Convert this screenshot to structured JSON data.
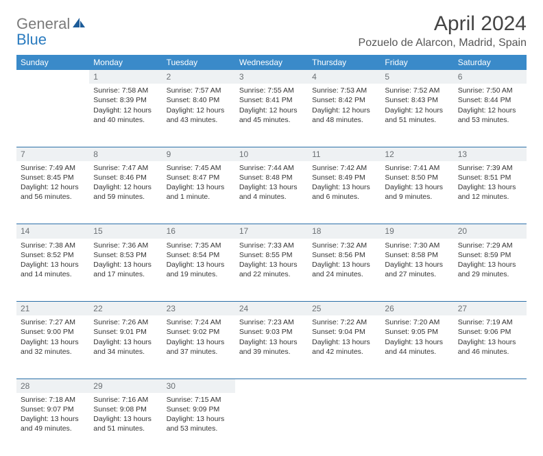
{
  "brand": {
    "word1": "General",
    "word2": "Blue",
    "color_general": "#7a7a7a",
    "color_blue": "#2a7bbf",
    "icon_color": "#1d5c99"
  },
  "title": "April 2024",
  "location": "Pozuelo de Alarcon, Madrid, Spain",
  "colors": {
    "header_bg": "#3a8ac9",
    "header_text": "#ffffff",
    "daynum_bg": "#eef1f3",
    "daynum_text": "#6a6f73",
    "row_border": "#2a6fa8",
    "body_text": "#333333",
    "page_bg": "#ffffff"
  },
  "weekdays": [
    "Sunday",
    "Monday",
    "Tuesday",
    "Wednesday",
    "Thursday",
    "Friday",
    "Saturday"
  ],
  "weeks": [
    {
      "nums": [
        "",
        "1",
        "2",
        "3",
        "4",
        "5",
        "6"
      ],
      "cells": [
        null,
        {
          "sunrise": "7:58 AM",
          "sunset": "8:39 PM",
          "daylight": "12 hours and 40 minutes."
        },
        {
          "sunrise": "7:57 AM",
          "sunset": "8:40 PM",
          "daylight": "12 hours and 43 minutes."
        },
        {
          "sunrise": "7:55 AM",
          "sunset": "8:41 PM",
          "daylight": "12 hours and 45 minutes."
        },
        {
          "sunrise": "7:53 AM",
          "sunset": "8:42 PM",
          "daylight": "12 hours and 48 minutes."
        },
        {
          "sunrise": "7:52 AM",
          "sunset": "8:43 PM",
          "daylight": "12 hours and 51 minutes."
        },
        {
          "sunrise": "7:50 AM",
          "sunset": "8:44 PM",
          "daylight": "12 hours and 53 minutes."
        }
      ]
    },
    {
      "nums": [
        "7",
        "8",
        "9",
        "10",
        "11",
        "12",
        "13"
      ],
      "cells": [
        {
          "sunrise": "7:49 AM",
          "sunset": "8:45 PM",
          "daylight": "12 hours and 56 minutes."
        },
        {
          "sunrise": "7:47 AM",
          "sunset": "8:46 PM",
          "daylight": "12 hours and 59 minutes."
        },
        {
          "sunrise": "7:45 AM",
          "sunset": "8:47 PM",
          "daylight": "13 hours and 1 minute."
        },
        {
          "sunrise": "7:44 AM",
          "sunset": "8:48 PM",
          "daylight": "13 hours and 4 minutes."
        },
        {
          "sunrise": "7:42 AM",
          "sunset": "8:49 PM",
          "daylight": "13 hours and 6 minutes."
        },
        {
          "sunrise": "7:41 AM",
          "sunset": "8:50 PM",
          "daylight": "13 hours and 9 minutes."
        },
        {
          "sunrise": "7:39 AM",
          "sunset": "8:51 PM",
          "daylight": "13 hours and 12 minutes."
        }
      ]
    },
    {
      "nums": [
        "14",
        "15",
        "16",
        "17",
        "18",
        "19",
        "20"
      ],
      "cells": [
        {
          "sunrise": "7:38 AM",
          "sunset": "8:52 PM",
          "daylight": "13 hours and 14 minutes."
        },
        {
          "sunrise": "7:36 AM",
          "sunset": "8:53 PM",
          "daylight": "13 hours and 17 minutes."
        },
        {
          "sunrise": "7:35 AM",
          "sunset": "8:54 PM",
          "daylight": "13 hours and 19 minutes."
        },
        {
          "sunrise": "7:33 AM",
          "sunset": "8:55 PM",
          "daylight": "13 hours and 22 minutes."
        },
        {
          "sunrise": "7:32 AM",
          "sunset": "8:56 PM",
          "daylight": "13 hours and 24 minutes."
        },
        {
          "sunrise": "7:30 AM",
          "sunset": "8:58 PM",
          "daylight": "13 hours and 27 minutes."
        },
        {
          "sunrise": "7:29 AM",
          "sunset": "8:59 PM",
          "daylight": "13 hours and 29 minutes."
        }
      ]
    },
    {
      "nums": [
        "21",
        "22",
        "23",
        "24",
        "25",
        "26",
        "27"
      ],
      "cells": [
        {
          "sunrise": "7:27 AM",
          "sunset": "9:00 PM",
          "daylight": "13 hours and 32 minutes."
        },
        {
          "sunrise": "7:26 AM",
          "sunset": "9:01 PM",
          "daylight": "13 hours and 34 minutes."
        },
        {
          "sunrise": "7:24 AM",
          "sunset": "9:02 PM",
          "daylight": "13 hours and 37 minutes."
        },
        {
          "sunrise": "7:23 AM",
          "sunset": "9:03 PM",
          "daylight": "13 hours and 39 minutes."
        },
        {
          "sunrise": "7:22 AM",
          "sunset": "9:04 PM",
          "daylight": "13 hours and 42 minutes."
        },
        {
          "sunrise": "7:20 AM",
          "sunset": "9:05 PM",
          "daylight": "13 hours and 44 minutes."
        },
        {
          "sunrise": "7:19 AM",
          "sunset": "9:06 PM",
          "daylight": "13 hours and 46 minutes."
        }
      ]
    },
    {
      "nums": [
        "28",
        "29",
        "30",
        "",
        "",
        "",
        ""
      ],
      "cells": [
        {
          "sunrise": "7:18 AM",
          "sunset": "9:07 PM",
          "daylight": "13 hours and 49 minutes."
        },
        {
          "sunrise": "7:16 AM",
          "sunset": "9:08 PM",
          "daylight": "13 hours and 51 minutes."
        },
        {
          "sunrise": "7:15 AM",
          "sunset": "9:09 PM",
          "daylight": "13 hours and 53 minutes."
        },
        null,
        null,
        null,
        null
      ]
    }
  ],
  "labels": {
    "sunrise_prefix": "Sunrise: ",
    "sunset_prefix": "Sunset: ",
    "daylight_prefix": "Daylight: "
  }
}
